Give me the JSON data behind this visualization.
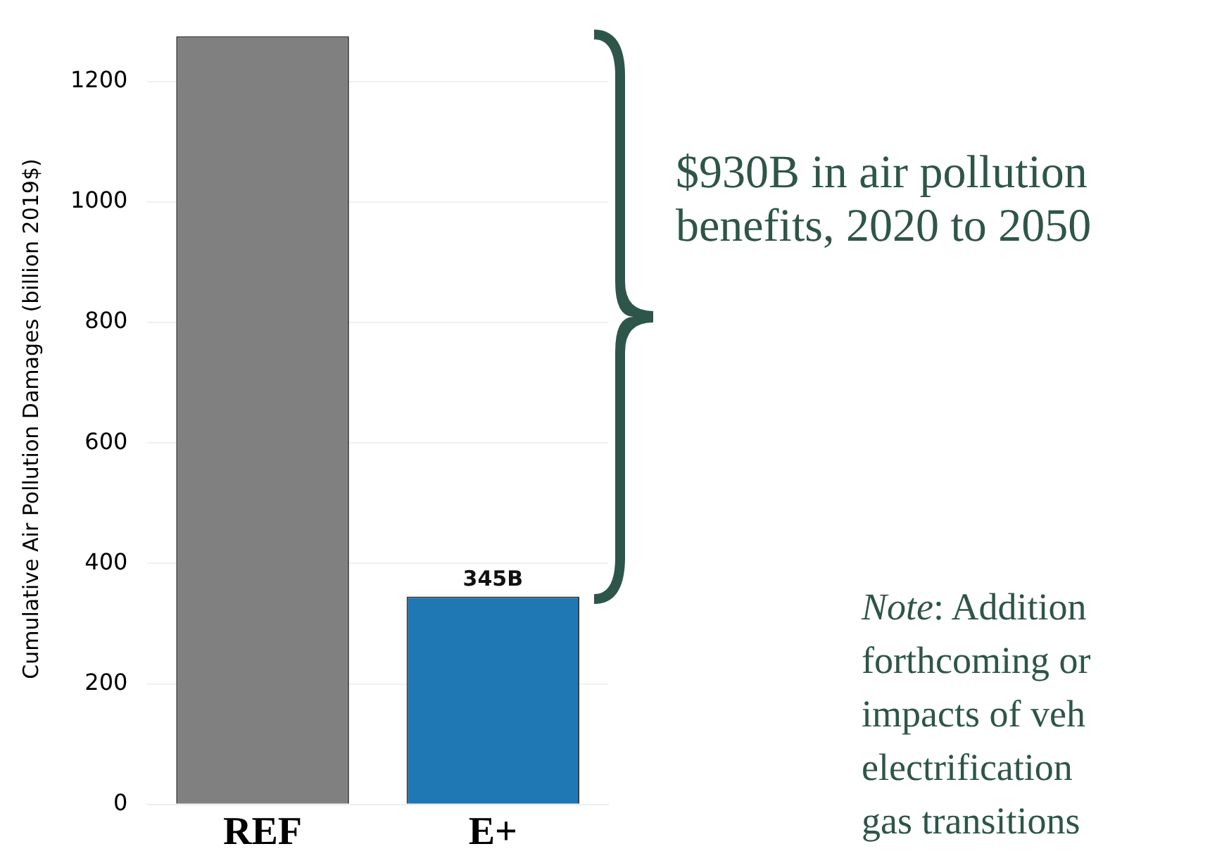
{
  "chart_data": {
    "type": "bar",
    "ylabel": "Cumulative Air Pollution Damages (billion 2019$)",
    "categories": [
      "REF",
      "E+"
    ],
    "values": [
      1275,
      345
    ],
    "colors": [
      "#808080",
      "#1f77b4"
    ],
    "value_labels": [
      null,
      "345B"
    ],
    "ylim": [
      0,
      1280
    ],
    "yticks": [
      0,
      200,
      400,
      600,
      800,
      1000,
      1200
    ],
    "grid": "y",
    "legend": false,
    "annotations": [
      "$930B in air pollution\nbenefits, 2020 to 2050",
      "Note: Addition\nforthcoming or\nimpacts of veh\nelectrification\ngas transitions"
    ]
  }
}
